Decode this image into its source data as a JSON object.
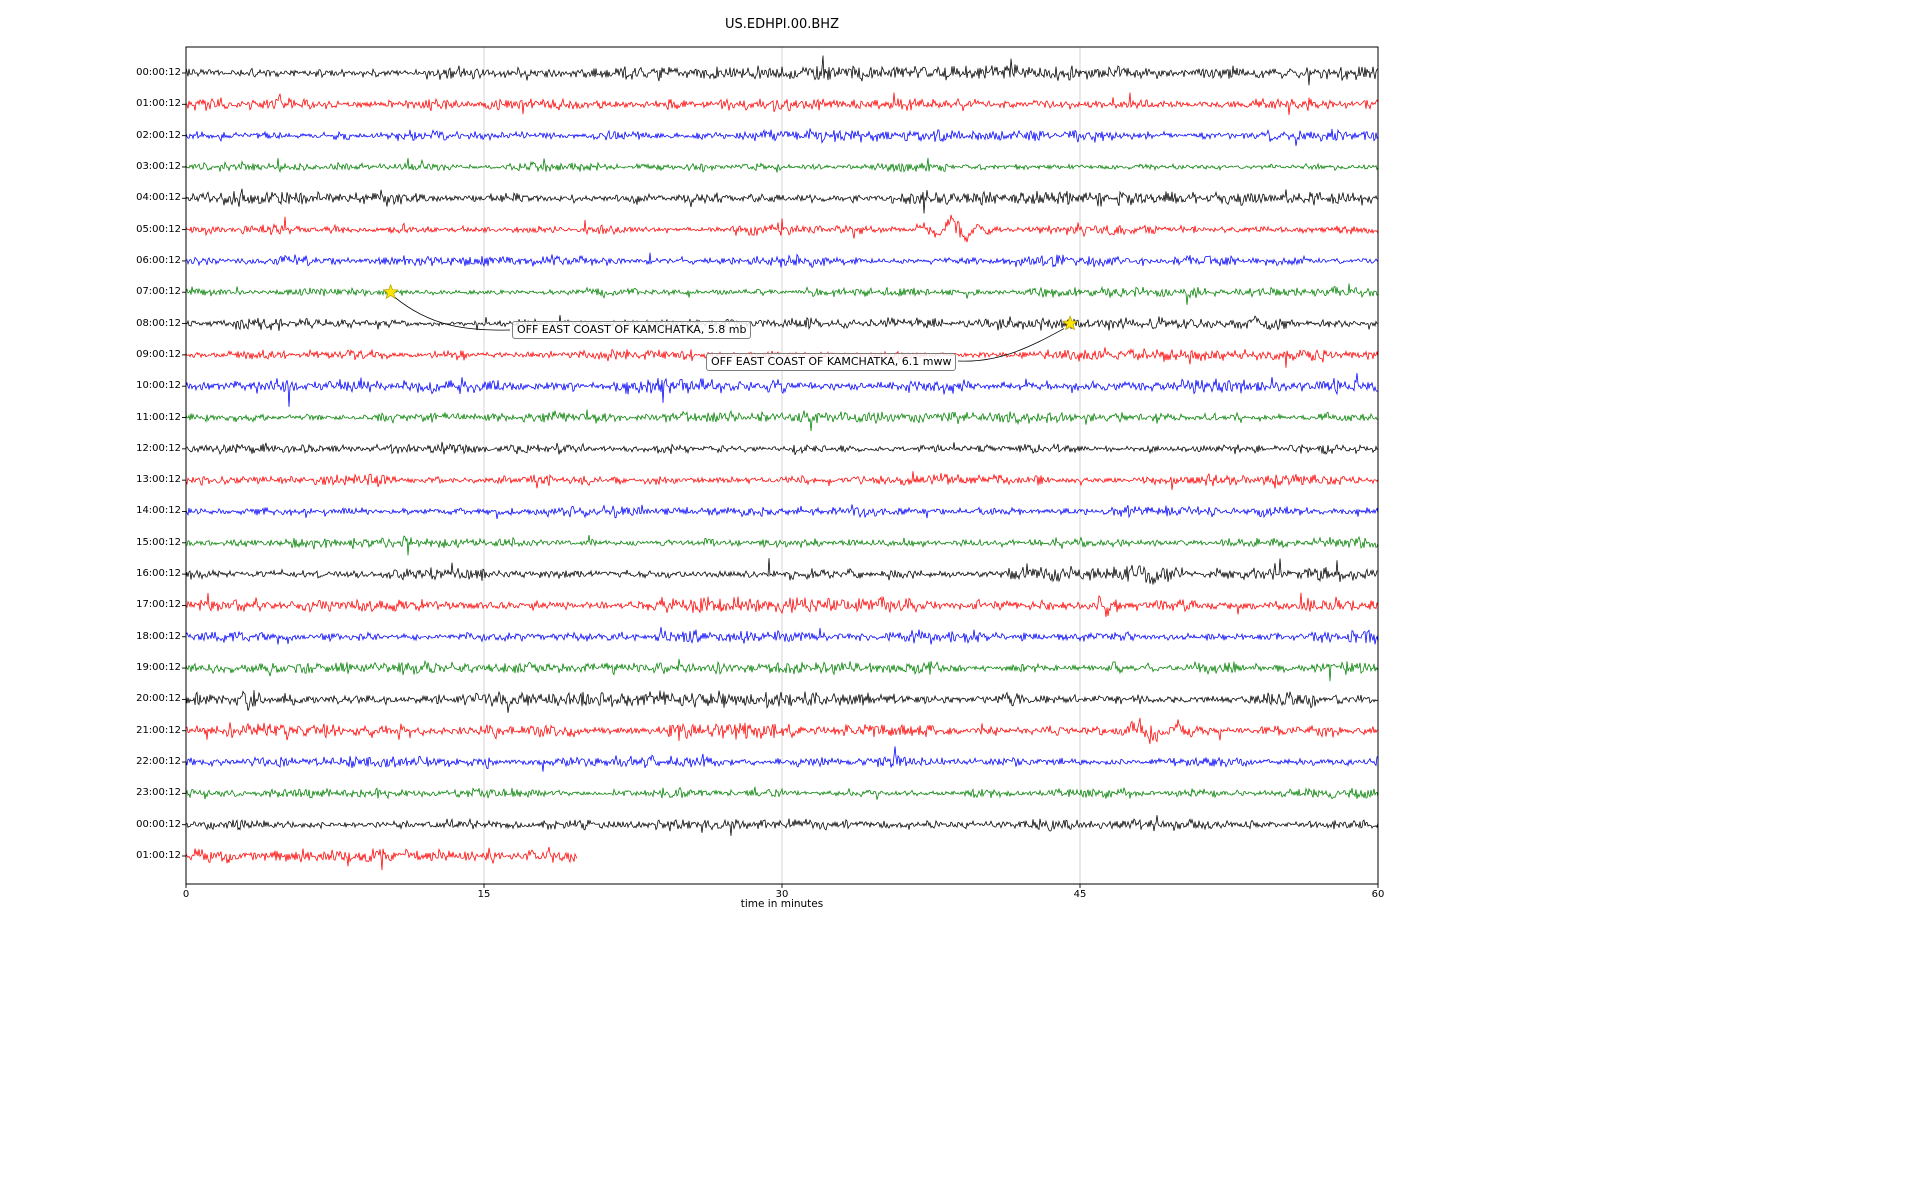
{
  "chart_data": {
    "type": "line",
    "title": "US.EDHPI.00.BHZ",
    "xlabel": "time in minutes",
    "x_range_minutes": [
      0,
      60
    ],
    "x_ticks": [
      {
        "label": "0",
        "minute": 0
      },
      {
        "label": "15",
        "minute": 15
      },
      {
        "label": "30",
        "minute": 30
      },
      {
        "label": "45",
        "minute": 45
      },
      {
        "label": "60",
        "minute": 60
      }
    ],
    "grid_minutes": [
      15,
      30,
      45
    ],
    "trace_color_cycle": [
      "#000000",
      "#ff0000",
      "#0000ff",
      "#008000"
    ],
    "marker_color": "#ffe600",
    "rows": [
      {
        "label": "00:00:12",
        "color": "#000000",
        "amp": 2.8,
        "end_minute": 60,
        "bursts": [
          [
            3.4,
            5,
            0.15
          ],
          [
            6.8,
            4,
            0.12
          ],
          [
            14.0,
            3,
            0.2
          ],
          [
            16.8,
            5,
            0.15
          ],
          [
            20.0,
            3,
            0.15
          ],
          [
            27.0,
            3,
            0.2
          ],
          [
            33.8,
            7,
            0.4
          ],
          [
            36.3,
            4,
            0.2
          ],
          [
            43.8,
            5,
            0.15
          ],
          [
            47.5,
            6,
            0.5
          ],
          [
            55.0,
            3,
            0.3
          ]
        ]
      },
      {
        "label": "01:00:12",
        "color": "#ff0000",
        "amp": 2.4,
        "end_minute": 60,
        "bursts": [
          [
            4.9,
            8,
            0.25
          ],
          [
            29.0,
            3,
            0.2
          ],
          [
            52.0,
            3,
            0.2
          ]
        ]
      },
      {
        "label": "02:00:12",
        "color": "#0000ff",
        "amp": 2.4,
        "end_minute": 60,
        "bursts": [
          [
            8.0,
            3,
            0.3
          ],
          [
            54.5,
            4,
            0.4
          ]
        ]
      },
      {
        "label": "03:00:12",
        "color": "#008000",
        "amp": 2.0,
        "end_minute": 60,
        "bursts": [
          [
            12.6,
            3,
            0.15
          ],
          [
            26.0,
            5,
            0.1
          ],
          [
            40.0,
            2.5,
            0.2
          ]
        ]
      },
      {
        "label": "04:00:12",
        "color": "#000000",
        "amp": 2.8,
        "end_minute": 60,
        "bursts": [
          [
            3.0,
            4,
            0.2
          ],
          [
            10.0,
            3,
            0.3
          ],
          [
            31.0,
            3,
            0.2
          ]
        ]
      },
      {
        "label": "05:00:12",
        "color": "#ff0000",
        "amp": 2.4,
        "end_minute": 60,
        "bursts": [
          [
            11.0,
            3,
            0.2
          ],
          [
            14.0,
            3,
            0.15
          ],
          [
            37.3,
            5,
            0.5
          ],
          [
            38.9,
            13,
            0.55
          ],
          [
            40.1,
            5,
            0.4
          ],
          [
            45.0,
            3,
            0.3
          ]
        ]
      },
      {
        "label": "06:00:12",
        "color": "#0000ff",
        "amp": 2.4,
        "end_minute": 60,
        "bursts": [
          [
            21.0,
            3,
            0.2
          ],
          [
            47.0,
            3,
            0.2
          ]
        ]
      },
      {
        "label": "07:00:12",
        "color": "#008000",
        "amp": 2.0,
        "end_minute": 60,
        "bursts": [
          [
            20.8,
            3.5,
            0.8
          ],
          [
            29.0,
            2.5,
            0.3
          ],
          [
            45.5,
            2.5,
            0.3
          ]
        ]
      },
      {
        "label": "08:00:12",
        "color": "#000000",
        "amp": 2.5,
        "end_minute": 60,
        "bursts": [
          [
            10.0,
            3,
            0.2
          ],
          [
            33.0,
            3,
            0.2
          ],
          [
            54.3,
            6,
            0.6
          ]
        ]
      },
      {
        "label": "09:00:12",
        "color": "#ff0000",
        "amp": 2.4,
        "end_minute": 60,
        "bursts": [
          [
            4.0,
            3,
            0.2
          ],
          [
            25.0,
            3,
            0.2
          ],
          [
            49.0,
            3,
            0.2
          ]
        ]
      },
      {
        "label": "10:00:12",
        "color": "#0000ff",
        "amp": 2.8,
        "end_minute": 60,
        "bursts": [
          [
            5.0,
            3,
            0.5
          ],
          [
            12.0,
            3,
            0.5
          ],
          [
            30.0,
            3,
            0.4
          ]
        ]
      },
      {
        "label": "11:00:12",
        "color": "#008000",
        "amp": 2.2,
        "end_minute": 60,
        "bursts": [
          [
            33.5,
            3.5,
            0.6
          ],
          [
            36.5,
            3,
            0.4
          ],
          [
            47.0,
            2.5,
            0.3
          ]
        ]
      },
      {
        "label": "12:00:12",
        "color": "#000000",
        "amp": 2.5,
        "end_minute": 60,
        "bursts": [
          [
            20.0,
            3,
            0.2
          ],
          [
            40.0,
            2.5,
            0.2
          ]
        ]
      },
      {
        "label": "13:00:12",
        "color": "#ff0000",
        "amp": 2.4,
        "end_minute": 60,
        "bursts": [
          [
            3.0,
            3.5,
            0.15
          ],
          [
            6.0,
            3,
            0.15
          ],
          [
            29.0,
            3,
            0.15
          ],
          [
            45.0,
            3.5,
            0.15
          ]
        ]
      },
      {
        "label": "14:00:12",
        "color": "#0000ff",
        "amp": 2.4,
        "end_minute": 60,
        "bursts": [
          [
            15.0,
            3.5,
            0.1
          ],
          [
            35.0,
            2.5,
            0.2
          ]
        ]
      },
      {
        "label": "15:00:12",
        "color": "#008000",
        "amp": 2.4,
        "end_minute": 60,
        "bursts": [
          [
            10.0,
            2.5,
            0.2
          ],
          [
            44.0,
            2.5,
            0.2
          ]
        ]
      },
      {
        "label": "16:00:12",
        "color": "#000000",
        "amp": 2.8,
        "end_minute": 60,
        "bursts": [
          [
            29.4,
            17,
            0.07
          ],
          [
            30.3,
            5,
            0.25
          ],
          [
            32.3,
            6,
            0.3
          ],
          [
            33.6,
            4,
            0.3
          ],
          [
            41.5,
            4,
            0.3
          ],
          [
            44.8,
            5,
            0.3
          ],
          [
            48.2,
            8,
            0.7
          ],
          [
            49.3,
            5,
            0.3
          ],
          [
            57.0,
            3,
            0.2
          ]
        ]
      },
      {
        "label": "17:00:12",
        "color": "#ff0000",
        "amp": 3.2,
        "end_minute": 60,
        "bursts": [
          [
            1.5,
            5,
            0.2
          ],
          [
            2.6,
            6,
            0.2
          ],
          [
            3.6,
            6,
            0.2
          ],
          [
            11.5,
            5,
            0.25
          ],
          [
            16.0,
            4,
            0.2
          ],
          [
            24.0,
            4,
            0.2
          ],
          [
            30.0,
            4,
            0.2
          ],
          [
            40.0,
            4,
            0.2
          ],
          [
            46.2,
            9,
            0.25
          ],
          [
            46.8,
            7,
            0.2
          ],
          [
            55.0,
            4,
            0.2
          ]
        ]
      },
      {
        "label": "18:00:12",
        "color": "#0000ff",
        "amp": 2.8,
        "end_minute": 60,
        "bursts": [
          [
            1.5,
            5,
            0.3
          ],
          [
            28.0,
            3,
            0.2
          ],
          [
            43.0,
            3,
            0.2
          ],
          [
            47.5,
            5,
            0.2
          ],
          [
            57.5,
            5,
            0.25
          ]
        ]
      },
      {
        "label": "19:00:12",
        "color": "#008000",
        "amp": 2.4,
        "end_minute": 60,
        "bursts": [
          [
            4.0,
            5,
            0.25
          ],
          [
            23.0,
            3,
            0.4
          ],
          [
            46.8,
            8,
            0.3
          ],
          [
            48.5,
            4,
            0.3
          ]
        ]
      },
      {
        "label": "20:00:12",
        "color": "#000000",
        "amp": 3.0,
        "end_minute": 60,
        "bursts": [
          [
            3.0,
            7,
            0.25
          ],
          [
            9.5,
            4,
            0.2
          ],
          [
            29.3,
            6,
            0.15
          ],
          [
            44.8,
            6,
            0.15
          ],
          [
            55.6,
            8,
            0.25
          ],
          [
            58.0,
            6,
            0.25
          ]
        ]
      },
      {
        "label": "21:00:12",
        "color": "#ff0000",
        "amp": 3.0,
        "end_minute": 60,
        "bursts": [
          [
            5.0,
            4,
            0.2
          ],
          [
            7.5,
            4,
            0.2
          ],
          [
            15.5,
            5,
            0.15
          ],
          [
            43.5,
            5,
            0.4
          ],
          [
            46.0,
            4,
            0.3
          ],
          [
            48.3,
            9,
            0.8
          ],
          [
            50.2,
            7,
            0.4
          ]
        ]
      },
      {
        "label": "22:00:12",
        "color": "#0000ff",
        "amp": 2.6,
        "end_minute": 60,
        "bursts": [
          [
            15.1,
            7,
            0.08
          ],
          [
            34.0,
            3,
            0.2
          ],
          [
            53.0,
            4,
            0.3
          ]
        ]
      },
      {
        "label": "23:00:12",
        "color": "#008000",
        "amp": 2.0,
        "end_minute": 60,
        "bursts": [
          [
            28.7,
            6,
            0.12
          ],
          [
            39.5,
            3,
            0.2
          ],
          [
            44.0,
            3,
            0.2
          ]
        ]
      },
      {
        "label": "00:00:12",
        "color": "#000000",
        "amp": 2.5,
        "end_minute": 60,
        "bursts": [
          [
            30.0,
            3,
            0.2
          ],
          [
            52.0,
            3,
            0.3
          ]
        ]
      },
      {
        "label": "01:00:12",
        "color": "#ff0000",
        "amp": 2.8,
        "end_minute": 19.7,
        "bursts": [
          [
            0.8,
            5,
            0.6
          ],
          [
            1.8,
            4,
            0.4
          ],
          [
            5.0,
            6,
            0.2
          ],
          [
            8.0,
            3,
            0.3
          ]
        ]
      }
    ],
    "events": [
      {
        "label": "OFF EAST COAST OF KAMCHATKA, 5.8 mb",
        "row_index": 7,
        "minute": 10.3
      },
      {
        "label": "OFF EAST COAST OF KAMCHATKA, 6.1 mww",
        "row_index": 8,
        "minute": 44.5
      }
    ]
  }
}
